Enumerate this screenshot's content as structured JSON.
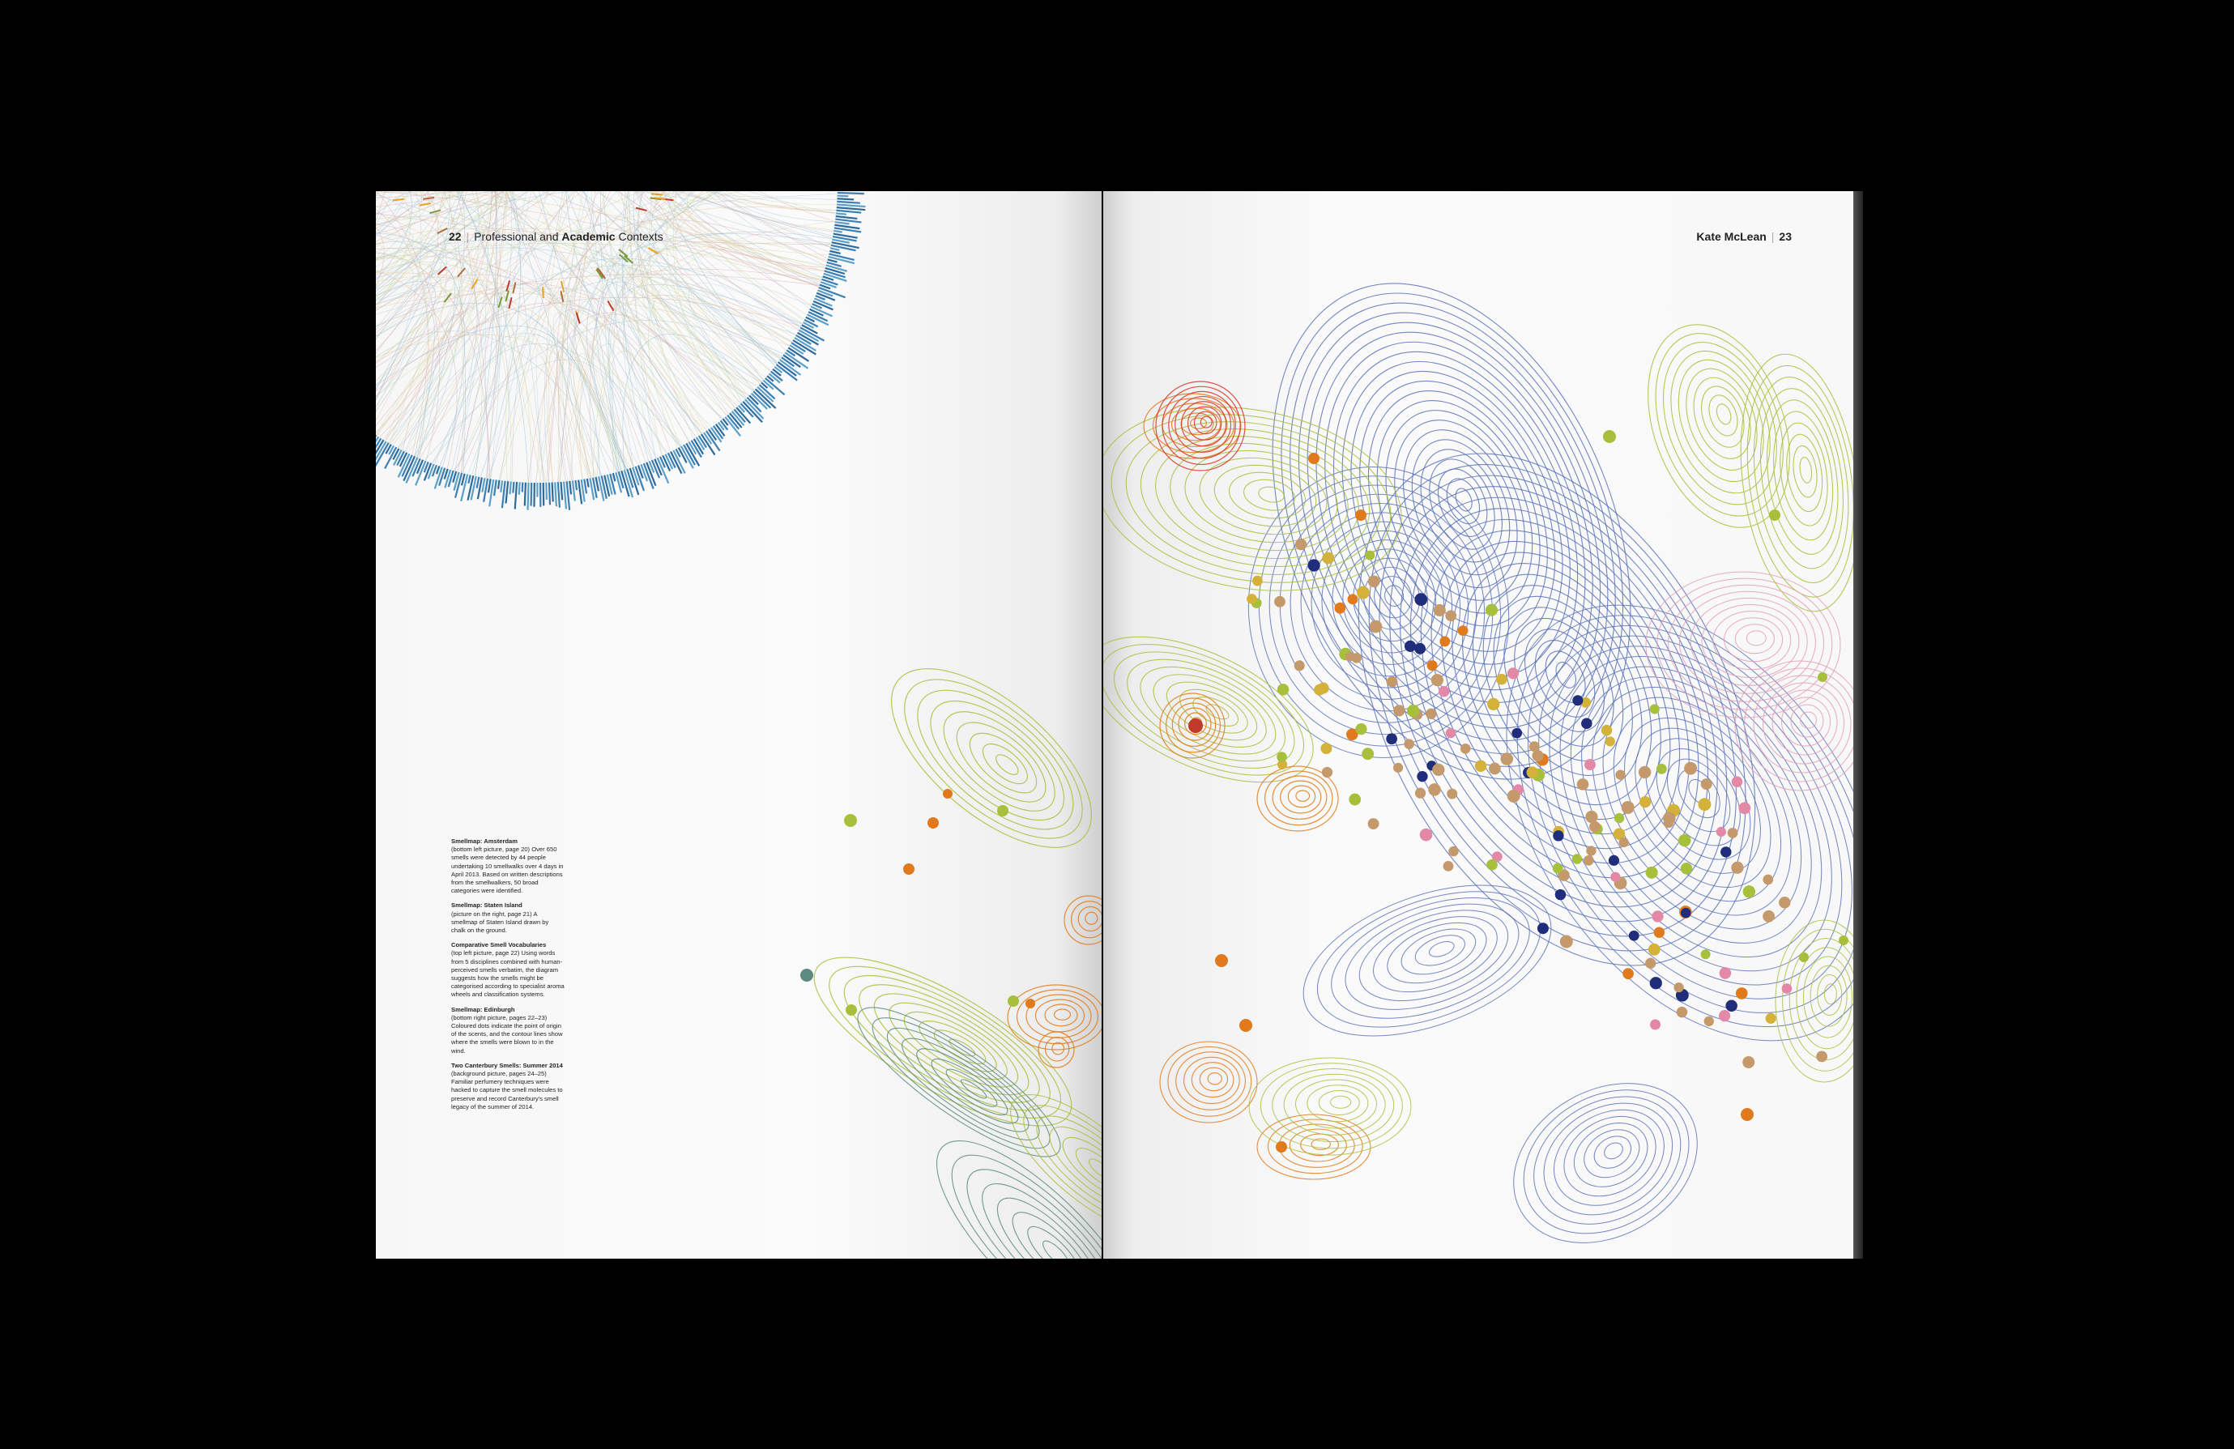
{
  "left_page": {
    "page_number": "22",
    "section_prefix": "Professional and",
    "section_bold": "Academic",
    "section_suffix": "Contexts",
    "captions": [
      {
        "title": "Smellmap: Amsterdam",
        "body": "(bottom left picture, page 20) Over 650 smells were detected by 44 people undertaking 10 smellwalks over 4 days in April 2013. Based on written descriptions from the smellwalkers, 50 broad categories were identified."
      },
      {
        "title": "Smellmap: Staten Island",
        "body": "(picture on the right, page 21) A smellmap of Staten Island drawn by chalk on the ground."
      },
      {
        "title": "Comparative Smell Vocabularies",
        "body": "(top left picture, page 22) Using words from 5 disciplines combined with human-perceived smells verbatim, the diagram suggests how the smells might be categorised according to specialist aroma wheels and classification systems."
      },
      {
        "title": "Smellmap: Edinburgh",
        "body": "(bottom right picture, pages 22–23) Coloured dots indicate the point of origin of the scents, and the contour lines show where the smells were blown to in the wind."
      },
      {
        "title": "Two Canterbury Smells: Summer 2014",
        "body": "(background picture, pages 24–25) Familiar perfumery techniques were hacked to capture the smell molecules to preserve and record Canterbury's smell legacy of the summer of 2014."
      }
    ]
  },
  "right_page": {
    "author": "Kate McLean",
    "page_number": "23"
  },
  "colors": {
    "background": "#000000",
    "paper": "#fbfbfb",
    "contour_blue": "#5a72b8",
    "contour_green": "#a8bf3e",
    "contour_orange": "#e07a1c",
    "contour_red": "#d8322c",
    "contour_teal": "#5a8a80",
    "contour_pink": "#e39bb4",
    "dot_tan": "#c49a6c",
    "dot_navy": "#1f2d7a",
    "wheel_line_blue": "#8fb6cf"
  }
}
